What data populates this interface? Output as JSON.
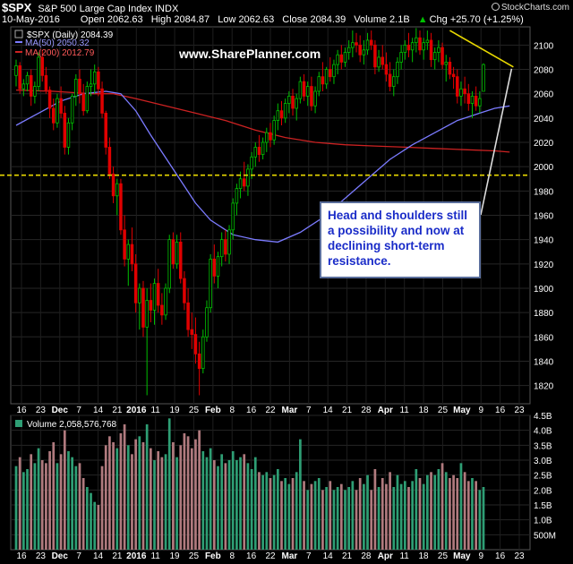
{
  "header": {
    "symbol": "$SPX",
    "name": "S&P 500 Large Cap Index",
    "exchange": "INDX",
    "date": "10-May-2016",
    "open": "Open 2062.63",
    "high": "High 2084.87",
    "low": "Low 2062.63",
    "close": "Close 2084.39",
    "volume": "Volume 2.1B",
    "chg": "Chg +25.70 (+1.25%)",
    "chg_arrow": "▲",
    "brand": "StockCharts.com"
  },
  "legend": {
    "price": "$SPX (Daily) 2084.39",
    "ma50": "MA(50) 2050.32",
    "ma200": "MA(200) 2012.79",
    "volume": "Volume 2,058,576,768"
  },
  "watermark": "www.SharePlanner.com",
  "callout": {
    "lines": [
      "Head and shoulders still",
      "a possibility and now at",
      "declining short-term",
      "resistance."
    ]
  },
  "colors": {
    "up": "#00c000",
    "down": "#e00000",
    "ma50": "#7b7bff",
    "ma200": "#cc2222",
    "support": "#e8d800",
    "volume_up": "#2e9e74",
    "volume_down": "#b07a7e",
    "callout_text": "#1a2cc8"
  },
  "chart_data": {
    "type": "candlestick",
    "ylim": [
      1805,
      2115
    ],
    "y_ticks": [
      "2100",
      "2080",
      "2060",
      "2040",
      "2020",
      "2000",
      "1980",
      "1960",
      "1940",
      "1920",
      "1900",
      "1880",
      "1860",
      "1840",
      "1820"
    ],
    "volume_ylim": [
      0,
      4.5
    ],
    "volume_ticks": [
      "4.5B",
      "4.0B",
      "3.5B",
      "3.0B",
      "2.5B",
      "2.0B",
      "1.5B",
      "1.0B",
      "500M"
    ],
    "x_ticks": [
      "16",
      "23",
      "Dec",
      "7",
      "14",
      "21",
      "2016",
      "11",
      "19",
      "25",
      "Feb",
      "8",
      "16",
      "22",
      "Mar",
      "7",
      "14",
      "21",
      "28",
      "Apr",
      "11",
      "18",
      "25",
      "May",
      "9",
      "16",
      "23"
    ],
    "support_level": 1993,
    "resistance_line": [
      {
        "bar": 116,
        "price": 2112
      },
      {
        "bar": 133,
        "price": 2082
      }
    ],
    "bars": [
      [
        2075,
        2088,
        2066,
        2083,
        2.8
      ],
      [
        2083,
        2086,
        2060,
        2064,
        3.1
      ],
      [
        2064,
        2072,
        2058,
        2068,
        2.6
      ],
      [
        2068,
        2078,
        2062,
        2075,
        2.7
      ],
      [
        2075,
        2080,
        2050,
        2058,
        3.2
      ],
      [
        2058,
        2070,
        2052,
        2066,
        2.9
      ],
      [
        2066,
        2094,
        2062,
        2090,
        3.4
      ],
      [
        2090,
        2096,
        2070,
        2075,
        3.0
      ],
      [
        2075,
        2082,
        2060,
        2063,
        2.9
      ],
      [
        2063,
        2066,
        2040,
        2048,
        3.3
      ],
      [
        2048,
        2056,
        2030,
        2036,
        3.6
      ],
      [
        2036,
        2060,
        2032,
        2056,
        2.9
      ],
      [
        2056,
        2066,
        2040,
        2044,
        3.2
      ],
      [
        2044,
        2050,
        2010,
        2016,
        4.0
      ],
      [
        2016,
        2040,
        2010,
        2036,
        3.3
      ],
      [
        2036,
        2060,
        2030,
        2058,
        3.1
      ],
      [
        2058,
        2076,
        2050,
        2072,
        2.8
      ],
      [
        2072,
        2080,
        2052,
        2060,
        2.9
      ],
      [
        2060,
        2068,
        2042,
        2046,
        2.4
      ],
      [
        2046,
        2070,
        2044,
        2066,
        2.1
      ],
      [
        2066,
        2080,
        2058,
        2068,
        1.9
      ],
      [
        2068,
        2084,
        2060,
        2078,
        1.6
      ],
      [
        2078,
        2082,
        2058,
        2064,
        1.5
      ],
      [
        2064,
        2070,
        2040,
        2044,
        2.8
      ],
      [
        2044,
        2046,
        2010,
        2016,
        3.5
      ],
      [
        2016,
        2024,
        1990,
        1994,
        3.8
      ],
      [
        1994,
        2000,
        1970,
        1976,
        3.6
      ],
      [
        1976,
        1990,
        1960,
        1986,
        3.4
      ],
      [
        1986,
        1990,
        1944,
        1948,
        3.9
      ],
      [
        1948,
        1960,
        1918,
        1924,
        4.2
      ],
      [
        1924,
        1940,
        1902,
        1936,
        3.5
      ],
      [
        1936,
        1950,
        1914,
        1920,
        3.2
      ],
      [
        1920,
        1928,
        1880,
        1888,
        3.7
      ],
      [
        1888,
        1904,
        1866,
        1900,
        3.8
      ],
      [
        1900,
        1906,
        1860,
        1868,
        3.6
      ],
      [
        1868,
        1900,
        1812,
        1890,
        4.2
      ],
      [
        1890,
        1904,
        1872,
        1882,
        3.4
      ],
      [
        1882,
        1908,
        1870,
        1904,
        3.0
      ],
      [
        1904,
        1916,
        1880,
        1886,
        3.3
      ],
      [
        1886,
        1896,
        1870,
        1878,
        3.1
      ],
      [
        1878,
        1904,
        1874,
        1900,
        3.2
      ],
      [
        1900,
        1944,
        1896,
        1940,
        4.4
      ],
      [
        1940,
        1946,
        1916,
        1920,
        3.6
      ],
      [
        1920,
        1944,
        1916,
        1938,
        3.1
      ],
      [
        1938,
        1946,
        1904,
        1908,
        3.5
      ],
      [
        1908,
        1914,
        1882,
        1888,
        3.9
      ],
      [
        1888,
        1900,
        1860,
        1866,
        3.8
      ],
      [
        1866,
        1880,
        1850,
        1862,
        3.4
      ],
      [
        1862,
        1876,
        1838,
        1846,
        3.7
      ],
      [
        1846,
        1856,
        1812,
        1834,
        4.0
      ],
      [
        1834,
        1866,
        1830,
        1860,
        3.3
      ],
      [
        1860,
        1890,
        1856,
        1884,
        3.1
      ],
      [
        1884,
        1928,
        1880,
        1924,
        3.4
      ],
      [
        1924,
        1936,
        1904,
        1910,
        3.0
      ],
      [
        1910,
        1930,
        1900,
        1926,
        2.8
      ],
      [
        1926,
        1946,
        1918,
        1940,
        3.2
      ],
      [
        1940,
        1948,
        1922,
        1928,
        2.9
      ],
      [
        1928,
        1952,
        1920,
        1948,
        3.0
      ],
      [
        1948,
        1974,
        1940,
        1970,
        3.3
      ],
      [
        1970,
        1986,
        1960,
        1982,
        3.0
      ],
      [
        1982,
        1996,
        1974,
        1990,
        3.1
      ],
      [
        1990,
        2004,
        1980,
        1984,
        3.2
      ],
      [
        1984,
        2002,
        1976,
        1998,
        2.9
      ],
      [
        1998,
        2012,
        1990,
        2008,
        2.7
      ],
      [
        2008,
        2020,
        2000,
        2016,
        3.1
      ],
      [
        2016,
        2026,
        2004,
        2010,
        2.6
      ],
      [
        2010,
        2024,
        2006,
        2020,
        2.5
      ],
      [
        2020,
        2032,
        2012,
        2028,
        2.6
      ],
      [
        2028,
        2036,
        2016,
        2022,
        2.4
      ],
      [
        2022,
        2042,
        2018,
        2038,
        2.5
      ],
      [
        2038,
        2052,
        2030,
        2046,
        2.7
      ],
      [
        2046,
        2054,
        2034,
        2040,
        2.3
      ],
      [
        2040,
        2056,
        2036,
        2052,
        2.4
      ],
      [
        2052,
        2062,
        2044,
        2058,
        2.2
      ],
      [
        2058,
        2064,
        2042,
        2048,
        2.4
      ],
      [
        2048,
        2060,
        2038,
        2056,
        2.6
      ],
      [
        2056,
        2074,
        2052,
        2070,
        3.7
      ],
      [
        2070,
        2076,
        2054,
        2058,
        2.3
      ],
      [
        2058,
        2070,
        2050,
        2066,
        2.0
      ],
      [
        2066,
        2074,
        2046,
        2050,
        2.2
      ],
      [
        2050,
        2066,
        2044,
        2062,
        2.3
      ],
      [
        2062,
        2078,
        2058,
        2074,
        2.4
      ],
      [
        2074,
        2086,
        2062,
        2068,
        2.0
      ],
      [
        2068,
        2082,
        2064,
        2080,
        2.1
      ],
      [
        2080,
        2090,
        2070,
        2074,
        2.3
      ],
      [
        2074,
        2088,
        2068,
        2084,
        2.0
      ],
      [
        2084,
        2096,
        2076,
        2092,
        2.1
      ],
      [
        2092,
        2100,
        2080,
        2086,
        2.2
      ],
      [
        2086,
        2098,
        2082,
        2094,
        2.0
      ],
      [
        2094,
        2104,
        2088,
        2098,
        2.1
      ],
      [
        2098,
        2112,
        2090,
        2102,
        2.3
      ],
      [
        2102,
        2110,
        2094,
        2100,
        2.0
      ],
      [
        2100,
        2108,
        2086,
        2092,
        2.4
      ],
      [
        2092,
        2104,
        2084,
        2096,
        2.2
      ],
      [
        2096,
        2110,
        2092,
        2104,
        2.5
      ],
      [
        2104,
        2112,
        2096,
        2100,
        2.0
      ],
      [
        2100,
        2104,
        2076,
        2082,
        2.7
      ],
      [
        2082,
        2096,
        2078,
        2090,
        2.1
      ],
      [
        2090,
        2100,
        2080,
        2084,
        2.4
      ],
      [
        2084,
        2094,
        2070,
        2076,
        2.2
      ],
      [
        2076,
        2086,
        2062,
        2066,
        2.6
      ],
      [
        2066,
        2080,
        2058,
        2074,
        2.1
      ],
      [
        2074,
        2090,
        2068,
        2086,
        2.5
      ],
      [
        2086,
        2100,
        2080,
        2094,
        2.2
      ],
      [
        2094,
        2104,
        2088,
        2100,
        2.3
      ],
      [
        2100,
        2110,
        2090,
        2096,
        2.1
      ],
      [
        2096,
        2106,
        2086,
        2102,
        2.3
      ],
      [
        2102,
        2114,
        2094,
        2106,
        2.7
      ],
      [
        2106,
        2112,
        2092,
        2096,
        2.4
      ],
      [
        2096,
        2106,
        2088,
        2102,
        2.2
      ],
      [
        2102,
        2112,
        2096,
        2104,
        2.5
      ],
      [
        2104,
        2110,
        2082,
        2088,
        2.6
      ],
      [
        2088,
        2098,
        2080,
        2094,
        2.5
      ],
      [
        2094,
        2104,
        2086,
        2098,
        2.7
      ],
      [
        2098,
        2102,
        2080,
        2084,
        2.9
      ],
      [
        2084,
        2092,
        2070,
        2086,
        2.6
      ],
      [
        2086,
        2090,
        2072,
        2076,
        2.4
      ],
      [
        2076,
        2082,
        2064,
        2074,
        2.5
      ],
      [
        2074,
        2080,
        2052,
        2058,
        2.4
      ],
      [
        2058,
        2070,
        2050,
        2064,
        2.9
      ],
      [
        2064,
        2074,
        2052,
        2060,
        2.6
      ],
      [
        2060,
        2068,
        2046,
        2052,
        2.3
      ],
      [
        2052,
        2062,
        2040,
        2058,
        2.4
      ],
      [
        2058,
        2066,
        2046,
        2050,
        2.3
      ],
      [
        2050,
        2062,
        2044,
        2056,
        2.0
      ],
      [
        2062,
        2085,
        2062,
        2084,
        2.1
      ]
    ],
    "ma50": [
      [
        0,
        2034
      ],
      [
        6,
        2044
      ],
      [
        12,
        2054
      ],
      [
        18,
        2060
      ],
      [
        24,
        2062
      ],
      [
        28,
        2060
      ],
      [
        32,
        2046
      ],
      [
        36,
        2026
      ],
      [
        42,
        1998
      ],
      [
        48,
        1970
      ],
      [
        52,
        1956
      ],
      [
        58,
        1944
      ],
      [
        64,
        1940
      ],
      [
        70,
        1938
      ],
      [
        76,
        1946
      ],
      [
        82,
        1958
      ],
      [
        88,
        1974
      ],
      [
        94,
        1990
      ],
      [
        100,
        2006
      ],
      [
        106,
        2018
      ],
      [
        112,
        2028
      ],
      [
        118,
        2038
      ],
      [
        124,
        2044
      ],
      [
        128,
        2048
      ],
      [
        132,
        2050
      ]
    ],
    "ma200": [
      [
        0,
        2063
      ],
      [
        10,
        2062
      ],
      [
        20,
        2060
      ],
      [
        26,
        2060
      ],
      [
        32,
        2056
      ],
      [
        40,
        2050
      ],
      [
        48,
        2044
      ],
      [
        56,
        2038
      ],
      [
        64,
        2030
      ],
      [
        72,
        2024
      ],
      [
        80,
        2020
      ],
      [
        88,
        2018
      ],
      [
        96,
        2017
      ],
      [
        104,
        2016
      ],
      [
        112,
        2015
      ],
      [
        120,
        2014
      ],
      [
        128,
        2013
      ],
      [
        132,
        2012
      ]
    ]
  }
}
